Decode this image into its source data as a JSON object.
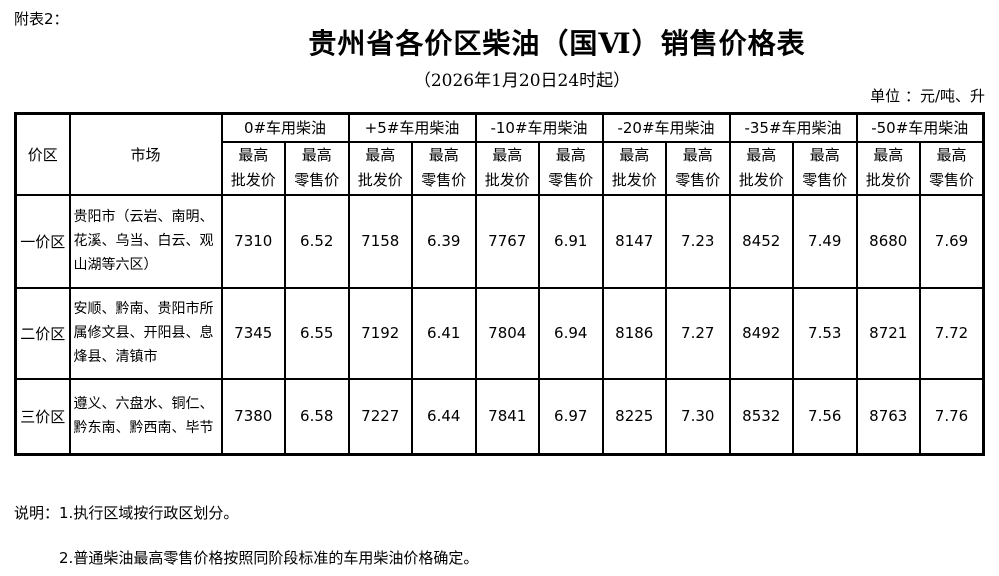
{
  "page": {
    "attachment_label": "附表2：",
    "title": "贵州省各价区柴油（国Ⅵ）销售价格表",
    "subtitle": "（2026年1月20日24时起）",
    "unit_label": "单位 ：元/吨、升"
  },
  "table": {
    "corner_headers": [
      "价区",
      "市场"
    ],
    "fuel_types": [
      "0#车用柴油",
      "+5#车用柴油",
      "-10#车用柴油",
      "-20#车用柴油",
      "-35#车用柴油",
      "-50#车用柴油"
    ],
    "sub_headers": [
      "最高\n批发价",
      "最高\n零售价"
    ],
    "rows": [
      {
        "zone": "一价区",
        "market": "贵阳市（云岩、南明、花溪、乌当、白云、观山湖等六区）",
        "values": [
          "7310",
          "6.52",
          "7158",
          "6.39",
          "7767",
          "6.91",
          "8147",
          "7.23",
          "8452",
          "7.49",
          "8680",
          "7.69"
        ]
      },
      {
        "zone": "二价区",
        "market": "安顺、黔南、贵阳市所属修文县、开阳县、息烽县、清镇市",
        "values": [
          "7345",
          "6.55",
          "7192",
          "6.41",
          "7804",
          "6.94",
          "8186",
          "7.27",
          "8492",
          "7.53",
          "8721",
          "7.72"
        ]
      },
      {
        "zone": "三价区",
        "market": "遵义、六盘水、铜仁、黔东南、黔西南、毕节",
        "values": [
          "7380",
          "6.58",
          "7227",
          "6.44",
          "7841",
          "6.97",
          "8225",
          "7.30",
          "8532",
          "7.56",
          "8763",
          "7.76"
        ]
      }
    ]
  },
  "notes": {
    "label": "说明：",
    "items": [
      "1.执行区域按行政区划分。",
      "2.普通柴油最高零售价格按照同阶段标准的车用柴油价格确定。"
    ]
  }
}
